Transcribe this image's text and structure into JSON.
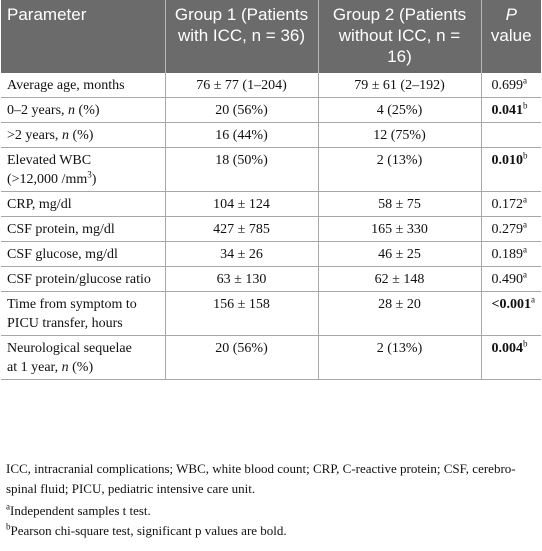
{
  "table": {
    "headers": {
      "parameter": "Parameter",
      "group1": "Group 1 (Patients with ICC, n = 36)",
      "group2": "Group 2 (Patients without ICC, n = 16)",
      "p_label": "P",
      "p_value_word": "value"
    },
    "rows": [
      {
        "param": "Average age, months",
        "g1": "76 ± 77 (1–204)",
        "g2": "79 ± 61 (2–192)",
        "p": "0.699",
        "p_sup": "a",
        "p_bold": false
      },
      {
        "param": "0–2 years, n (%)",
        "g1": "20 (56%)",
        "g2": "4 (25%)",
        "p": "0.041",
        "p_sup": "b",
        "p_bold": true
      },
      {
        "param": ">2 years, n (%)",
        "g1": "16 (44%)",
        "g2": "12 (75%)",
        "p": "",
        "p_sup": "",
        "p_bold": false
      },
      {
        "param": "Elevated WBC (>12,000 /mm3)",
        "g1": "18 (50%)",
        "g2": "2 (13%)",
        "p": "0.010",
        "p_sup": "b",
        "p_bold": true
      },
      {
        "param": "CRP, mg/dl",
        "g1": "104 ± 124",
        "g2": "58 ± 75",
        "p": "0.172",
        "p_sup": "a",
        "p_bold": false
      },
      {
        "param": "CSF protein, mg/dl",
        "g1": "427 ± 785",
        "g2": "165 ± 330",
        "p": "0.279",
        "p_sup": "a",
        "p_bold": false
      },
      {
        "param": "CSF glucose, mg/dl",
        "g1": "34 ± 26",
        "g2": "46 ± 25",
        "p": "0.189",
        "p_sup": "a",
        "p_bold": false
      },
      {
        "param": "CSF protein/glucose ratio",
        "g1": "63 ± 130",
        "g2": "62 ± 148",
        "p": "0.490",
        "p_sup": "a",
        "p_bold": false
      },
      {
        "param": "Time from symptom to PICU transfer, hours",
        "g1": "156 ± 158",
        "g2": "28 ± 20",
        "p": "<0.001",
        "p_sup": "a",
        "p_bold": true
      },
      {
        "param": "Neurological sequelae at 1 year, n (%)",
        "g1": "20 (56%)",
        "g2": "2 (13%)",
        "p": "0.004",
        "p_sup": "b",
        "p_bold": true
      }
    ]
  },
  "footnotes": {
    "abbreviations": "ICC, intracranial complications; WBC, white blood count; CRP, C-reactive protein; CSF, cerebro-spinal fluid; PICU, pediatric intensive care unit.",
    "a_mark": "a",
    "a_text": "Independent samples t test.",
    "b_mark": "b",
    "b_text": "Pearson chi-square test, significant p values are bold."
  }
}
